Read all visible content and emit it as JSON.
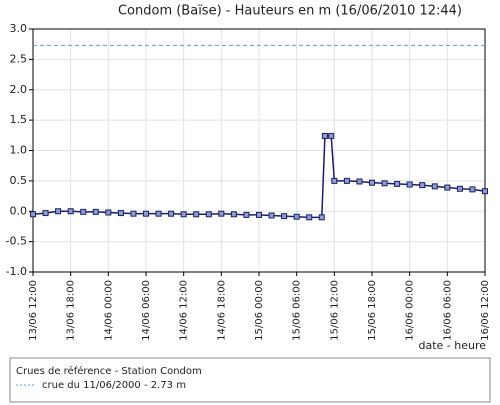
{
  "chart_data": {
    "type": "line",
    "title": "Condom (Baïse) - Hauteurs en m (16/06/2010 12:44)",
    "x_label": "date - heure",
    "x": [
      "13/06 12:00",
      "13/06 14:00",
      "13/06 16:00",
      "13/06 18:00",
      "13/06 20:00",
      "13/06 22:00",
      "14/06 00:00",
      "14/06 02:00",
      "14/06 04:00",
      "14/06 06:00",
      "14/06 08:00",
      "14/06 10:00",
      "14/06 12:00",
      "14/06 14:00",
      "14/06 16:00",
      "14/06 18:00",
      "14/06 20:00",
      "14/06 22:00",
      "15/06 00:00",
      "15/06 02:00",
      "15/06 04:00",
      "15/06 06:00",
      "15/06 08:00",
      "15/06 10:00",
      "15/06 10:30",
      "15/06 11:30",
      "15/06 12:00",
      "15/06 14:00",
      "15/06 16:00",
      "15/06 18:00",
      "15/06 20:00",
      "15/06 22:00",
      "16/06 00:00",
      "16/06 02:00",
      "16/06 04:00",
      "16/06 06:00",
      "16/06 08:00",
      "16/06 10:00",
      "16/06 12:00"
    ],
    "series": [
      {
        "name": "Hauteurs",
        "color": "#1c1c6b",
        "values": [
          -0.05,
          -0.03,
          0.0,
          0.0,
          -0.01,
          -0.01,
          -0.02,
          -0.03,
          -0.04,
          -0.04,
          -0.04,
          -0.04,
          -0.05,
          -0.05,
          -0.05,
          -0.04,
          -0.05,
          -0.06,
          -0.06,
          -0.07,
          -0.08,
          -0.09,
          -0.1,
          -0.1,
          1.24,
          1.24,
          0.5,
          0.5,
          0.49,
          0.47,
          0.46,
          0.45,
          0.44,
          0.43,
          0.41,
          0.39,
          0.37,
          0.36,
          0.33
        ]
      }
    ],
    "xlim": [
      "13/06 12:00",
      "16/06 12:00"
    ],
    "xticks": [
      "13/06 12:00",
      "13/06 18:00",
      "14/06 00:00",
      "14/06 06:00",
      "14/06 12:00",
      "14/06 18:00",
      "15/06 00:00",
      "15/06 06:00",
      "15/06 12:00",
      "15/06 18:00",
      "16/06 00:00",
      "16/06 06:00",
      "16/06 12:00"
    ],
    "ylim": [
      -1.0,
      3.0
    ],
    "yticks": [
      {
        "value": 3,
        "label": "3.0"
      },
      {
        "value": 2.5,
        "label": "2.5"
      },
      {
        "value": 2,
        "label": "2.0"
      },
      {
        "value": 1.5,
        "label": "1.5"
      },
      {
        "value": 1,
        "label": "1.0"
      },
      {
        "value": 0.5,
        "label": "0.5"
      },
      {
        "value": 0,
        "label": "0.0"
      },
      {
        "value": -0.5,
        "label": "-0.5"
      },
      {
        "value": -1,
        "label": "-1.0"
      }
    ],
    "grid": true,
    "reference": {
      "value": 2.73,
      "color": "#4aa3df"
    },
    "legend": {
      "title": "Crues de référence - Station Condom",
      "entry": "crue du 11/06/2000 - 2.73 m"
    }
  }
}
